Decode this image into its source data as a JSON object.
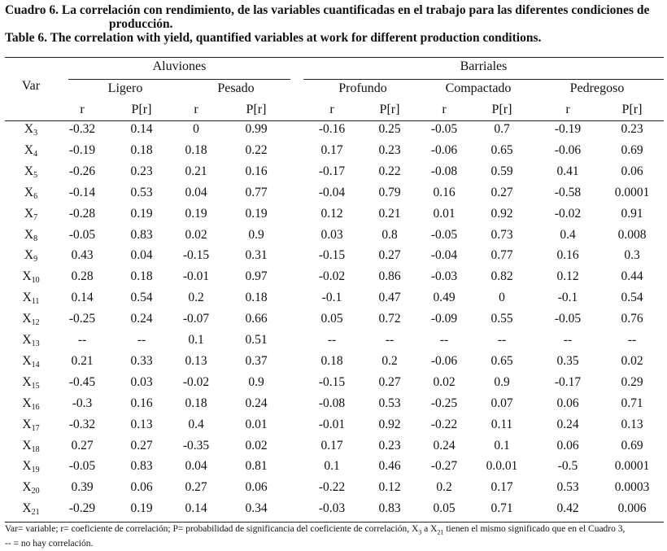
{
  "caption": {
    "es_line1": "Cuadro 6. La correlación con rendimiento, de las variables cuantificadas en el trabajo para las diferentes condiciones de",
    "es_line2": "producción.",
    "en": "Table 6. The correlation with yield, quantified variables at work for different production conditions."
  },
  "header": {
    "var": "Var",
    "groups": [
      "Aluviones",
      "Barriales"
    ],
    "conditions": [
      "Ligero",
      "Pesado",
      "Profundo",
      "Compactado",
      "Pedregoso"
    ],
    "stats": [
      "r",
      "P[r]"
    ]
  },
  "rows": [
    {
      "var": "X",
      "sub": "3",
      "values": [
        "-0.32",
        "0.14",
        "0",
        "0.99",
        "-0.16",
        "0.25",
        "-0.05",
        "0.7",
        "-0.19",
        "0.23"
      ]
    },
    {
      "var": "X",
      "sub": "4",
      "values": [
        "-0.19",
        "0.18",
        "0.18",
        "0.22",
        "0.17",
        "0.23",
        "-0.06",
        "0.65",
        "-0.06",
        "0.69"
      ]
    },
    {
      "var": "X",
      "sub": "5",
      "values": [
        "-0.26",
        "0.23",
        "0.21",
        "0.16",
        "-0.17",
        "0.22",
        "-0.08",
        "0.59",
        "0.41",
        "0.06"
      ]
    },
    {
      "var": "X",
      "sub": "6",
      "values": [
        "-0.14",
        "0.53",
        "0.04",
        "0.77",
        "-0.04",
        "0.79",
        "0.16",
        "0.27",
        "-0.58",
        "0.0001"
      ]
    },
    {
      "var": "X",
      "sub": "7",
      "values": [
        "-0.28",
        "0.19",
        "0.19",
        "0.19",
        "0.12",
        "0.21",
        "0.01",
        "0.92",
        "-0.02",
        "0.91"
      ]
    },
    {
      "var": "X",
      "sub": "8",
      "values": [
        "-0.05",
        "0.83",
        "0.02",
        "0.9",
        "0.03",
        "0.8",
        "-0.05",
        "0.73",
        "0.4",
        "0.008"
      ]
    },
    {
      "var": "X",
      "sub": "9",
      "values": [
        "0.43",
        "0.04",
        "-0.15",
        "0.31",
        "-0.15",
        "0.27",
        "-0.04",
        "0.77",
        "0.16",
        "0.3"
      ]
    },
    {
      "var": "X",
      "sub": "10",
      "values": [
        "0.28",
        "0.18",
        "-0.01",
        "0.97",
        "-0.02",
        "0.86",
        "-0.03",
        "0.82",
        "0.12",
        "0.44"
      ]
    },
    {
      "var": "X",
      "sub": "11",
      "values": [
        "0.14",
        "0.54",
        "0.2",
        "0.18",
        "-0.1",
        "0.47",
        "0.49",
        "0",
        "-0.1",
        "0.54"
      ]
    },
    {
      "var": "X",
      "sub": "12",
      "values": [
        "-0.25",
        "0.24",
        "-0.07",
        "0.66",
        "0.05",
        "0.72",
        "-0.09",
        "0.55",
        "-0.05",
        "0.76"
      ]
    },
    {
      "var": "X",
      "sub": "13",
      "values": [
        "--",
        "--",
        "0.1",
        "0.51",
        "--",
        "--",
        "--",
        "--",
        "--",
        "--"
      ]
    },
    {
      "var": "X",
      "sub": "14",
      "values": [
        "0.21",
        "0.33",
        "0.13",
        "0.37",
        "0.18",
        "0.2",
        "-0.06",
        "0.65",
        "0.35",
        "0.02"
      ]
    },
    {
      "var": "X",
      "sub": "15",
      "values": [
        "-0.45",
        "0.03",
        "-0.02",
        "0.9",
        "-0.15",
        "0.27",
        "0.02",
        "0.9",
        "-0.17",
        "0.29"
      ]
    },
    {
      "var": "X",
      "sub": "16",
      "values": [
        "-0.3",
        "0.16",
        "0.18",
        "0.24",
        "-0.08",
        "0.53",
        "-0.25",
        "0.07",
        "0.06",
        "0.71"
      ]
    },
    {
      "var": "X",
      "sub": "17",
      "values": [
        "-0.32",
        "0.13",
        "0.4",
        "0.01",
        "-0.01",
        "0.92",
        "-0.22",
        "0.11",
        "0.24",
        "0.13"
      ]
    },
    {
      "var": "X",
      "sub": "18",
      "values": [
        "0.27",
        "0.27",
        "-0.35",
        "0.02",
        "0.17",
        "0.23",
        "0.24",
        "0.1",
        "0.06",
        "0.69"
      ]
    },
    {
      "var": "X",
      "sub": "19",
      "values": [
        "-0.05",
        "0.83",
        "0.04",
        "0.81",
        "0.1",
        "0.46",
        "-0.27",
        "0.0.01",
        "-0.5",
        "0.0001"
      ]
    },
    {
      "var": "X",
      "sub": "20",
      "values": [
        "0.39",
        "0.06",
        "0.27",
        "0.06",
        "-0.22",
        "0.12",
        "0.2",
        "0.17",
        "0.53",
        "0.0003"
      ]
    },
    {
      "var": "X",
      "sub": "21",
      "values": [
        "-0.29",
        "0.19",
        "0.14",
        "0.34",
        "-0.03",
        "0.83",
        "0.05",
        "0.71",
        "0.42",
        "0.006"
      ]
    }
  ],
  "footnote": {
    "part1": "Var= variable; r= coeficiente de correlación; P= probabilidad de significancia del coeficiente de correlación, X",
    "sub_a": "3",
    "part2": " a X",
    "sub_b": "21",
    "part3": " tienen el mismo significado que en el Cuadro 3,",
    "line2": "-- = no hay correlación."
  }
}
